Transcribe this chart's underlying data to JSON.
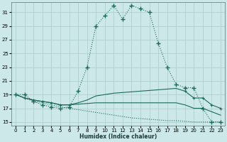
{
  "xlabel": "Humidex (Indice chaleur)",
  "bg_color": "#cde8e8",
  "grid_color": "#aacccc",
  "line_color": "#1a6b5a",
  "xlim": [
    -0.5,
    23.5
  ],
  "ylim": [
    14.5,
    32.5
  ],
  "xticks": [
    0,
    1,
    2,
    3,
    4,
    5,
    6,
    7,
    8,
    9,
    10,
    11,
    12,
    13,
    14,
    15,
    16,
    17,
    18,
    19,
    20,
    21,
    22,
    23
  ],
  "yticks": [
    15,
    17,
    19,
    21,
    23,
    25,
    27,
    29,
    31
  ],
  "line1_x": [
    0,
    1,
    2,
    3,
    4,
    5,
    6,
    7,
    8,
    9,
    10,
    11,
    12,
    13,
    14,
    15,
    16,
    17,
    18,
    19,
    20,
    21,
    22,
    23
  ],
  "line1_y": [
    19.0,
    19.0,
    18.0,
    17.5,
    17.2,
    17.0,
    17.2,
    19.5,
    23.0,
    29.0,
    30.5,
    32.0,
    30.0,
    32.0,
    31.5,
    31.0,
    26.5,
    23.0,
    20.5,
    20.0,
    20.0,
    17.0,
    15.0,
    15.0
  ],
  "line2_x": [
    0,
    1,
    2,
    3,
    4,
    5,
    6,
    7,
    8,
    9,
    10,
    11,
    12,
    13,
    14,
    15,
    16,
    17,
    18,
    19,
    20,
    21,
    22,
    23
  ],
  "line2_y": [
    19.0,
    18.5,
    18.2,
    18.0,
    17.8,
    17.5,
    17.5,
    17.8,
    18.2,
    18.8,
    19.0,
    19.2,
    19.3,
    19.4,
    19.5,
    19.6,
    19.7,
    19.8,
    19.9,
    19.5,
    18.5,
    18.5,
    17.5,
    17.0
  ],
  "line3_x": [
    0,
    1,
    2,
    3,
    4,
    5,
    6,
    7,
    8,
    9,
    10,
    11,
    12,
    13,
    14,
    15,
    16,
    17,
    18,
    19,
    20,
    21,
    22,
    23
  ],
  "line3_y": [
    19.0,
    18.5,
    18.2,
    18.0,
    17.8,
    17.5,
    17.5,
    17.6,
    17.7,
    17.8,
    17.8,
    17.8,
    17.8,
    17.8,
    17.8,
    17.8,
    17.8,
    17.8,
    17.8,
    17.5,
    17.0,
    17.0,
    16.5,
    16.0
  ],
  "line4_x": [
    0,
    1,
    2,
    3,
    4,
    5,
    6,
    7,
    8,
    9,
    10,
    11,
    12,
    13,
    14,
    15,
    16,
    17,
    18,
    19,
    20,
    21,
    22,
    23
  ],
  "line4_y": [
    19.0,
    18.5,
    18.0,
    17.8,
    17.5,
    17.2,
    17.0,
    16.8,
    16.6,
    16.4,
    16.2,
    16.0,
    15.8,
    15.6,
    15.5,
    15.4,
    15.3,
    15.2,
    15.2,
    15.1,
    15.0,
    15.0,
    15.0,
    15.0
  ]
}
